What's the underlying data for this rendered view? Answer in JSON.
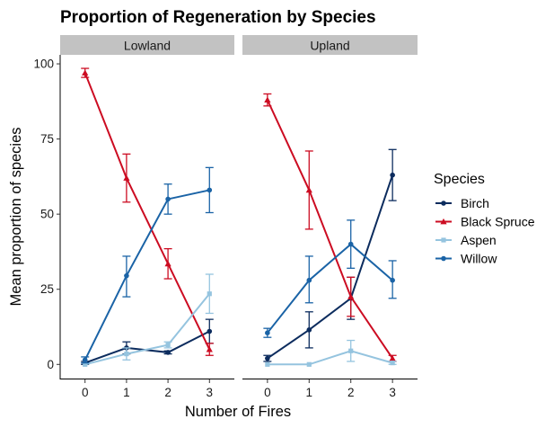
{
  "chart_data": {
    "type": "line",
    "title": "Proportion of Regeneration by Species",
    "xlabel": "Number of Fires",
    "ylabel": "Mean proportion of species",
    "x": [
      0,
      1,
      2,
      3
    ],
    "x_ticks": [
      "0",
      "1",
      "2",
      "3"
    ],
    "y_ticks": [
      "0",
      "25",
      "50",
      "75",
      "100"
    ],
    "ylim": [
      -5,
      103
    ],
    "xlim": [
      -0.6,
      3.6
    ],
    "grid": false,
    "legend": {
      "title": "Species",
      "placement": "right"
    },
    "panels": [
      {
        "name": "Lowland",
        "series": [
          {
            "name": "Birch",
            "color": "#0c2c5e",
            "marker": "circle",
            "values": [
              0.5,
              5.5,
              4,
              11
            ],
            "lower": [
              0,
              3.5,
              3.5,
              7
            ],
            "upper": [
              1,
              7.5,
              4.5,
              15
            ]
          },
          {
            "name": "Black Spruce",
            "color": "#cc0c22",
            "marker": "triangle",
            "values": [
              97,
              62,
              33.5,
              5
            ],
            "lower": [
              95.5,
              54,
              28.5,
              3
            ],
            "upper": [
              98.5,
              70,
              38.5,
              7
            ]
          },
          {
            "name": "Aspen",
            "color": "#95c4df",
            "marker": "square",
            "values": [
              0,
              3.5,
              6.5,
              23.5
            ],
            "lower": [
              0,
              1.5,
              5.5,
              17
            ],
            "upper": [
              0,
              5.5,
              7.5,
              30
            ]
          },
          {
            "name": "Willow",
            "color": "#1a63a6",
            "marker": "circle",
            "values": [
              1.5,
              29.5,
              55,
              58
            ],
            "lower": [
              0.5,
              22.5,
              50,
              50.5
            ],
            "upper": [
              2.5,
              36,
              60,
              65.5
            ]
          }
        ]
      },
      {
        "name": "Upland",
        "series": [
          {
            "name": "Birch",
            "color": "#0c2c5e",
            "marker": "circle",
            "values": [
              2,
              11.5,
              22,
              63
            ],
            "lower": [
              1,
              5.5,
              15,
              54.5
            ],
            "upper": [
              3,
              17.5,
              29,
              71.5
            ]
          },
          {
            "name": "Black Spruce",
            "color": "#cc0c22",
            "marker": "triangle",
            "values": [
              88,
              58,
              22.5,
              2
            ],
            "lower": [
              86,
              45,
              16,
              1
            ],
            "upper": [
              90,
              71,
              29,
              3
            ]
          },
          {
            "name": "Aspen",
            "color": "#95c4df",
            "marker": "square",
            "values": [
              0,
              0,
              4.5,
              0.5
            ],
            "lower": [
              0,
              0,
              1,
              0
            ],
            "upper": [
              0,
              0,
              8,
              1
            ]
          },
          {
            "name": "Willow",
            "color": "#1a63a6",
            "marker": "circle",
            "values": [
              10.5,
              28,
              40,
              28
            ],
            "lower": [
              9,
              20.5,
              32,
              22
            ],
            "upper": [
              12,
              36,
              48,
              34.5
            ]
          }
        ]
      }
    ]
  }
}
